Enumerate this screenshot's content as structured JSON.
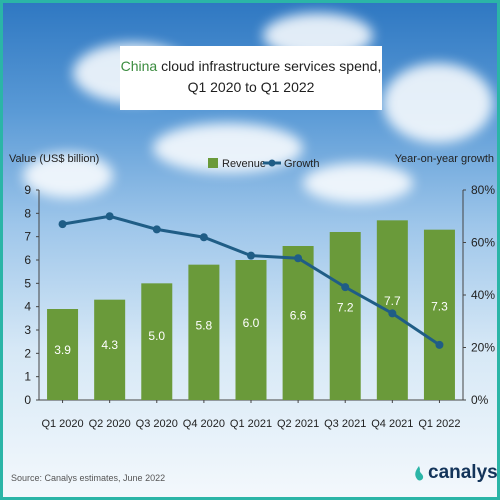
{
  "title": {
    "accent": "China",
    "line1_rest": " cloud infrastructure services spend,",
    "line2": "Q1 2020 to Q1 2022"
  },
  "chart_data": {
    "type": "bar",
    "categories": [
      "Q1 2020",
      "Q2 2020",
      "Q3 2020",
      "Q4 2020",
      "Q1 2021",
      "Q2 2021",
      "Q3 2021",
      "Q4 2021",
      "Q1 2022"
    ],
    "series": [
      {
        "name": "Revenue",
        "type": "bar",
        "axis": "left",
        "color": "#6a9a3a",
        "values": [
          3.9,
          4.3,
          5.0,
          5.8,
          6.0,
          6.6,
          7.2,
          7.7,
          7.3
        ],
        "labels": [
          "3.9",
          "4.3",
          "5.0",
          "5.8",
          "6.0",
          "6.6",
          "7.2",
          "7.7",
          "7.3"
        ]
      },
      {
        "name": "Growth",
        "type": "line",
        "axis": "right",
        "color": "#1f5d86",
        "values": [
          67,
          70,
          65,
          62,
          55,
          54,
          43,
          33,
          21
        ]
      }
    ],
    "ylabel": "Value (US$ billion)",
    "ylabel_right": "Year-on-year growth",
    "ylim": [
      0,
      9
    ],
    "yticks": [
      "0",
      "1",
      "2",
      "3",
      "4",
      "5",
      "6",
      "7",
      "8",
      "9"
    ],
    "ylim_right": [
      0,
      80
    ],
    "yticks_right": [
      "0%",
      "20%",
      "40%",
      "60%",
      "80%"
    ],
    "legend_position": "top-center",
    "grid": false
  },
  "footer": {
    "source": "Source: Canalys estimates, June 2022",
    "brand": "canalys"
  }
}
